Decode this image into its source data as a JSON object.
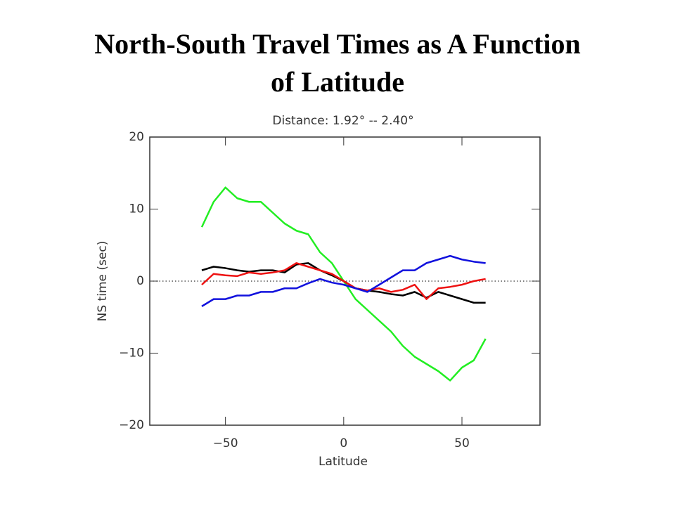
{
  "slide_title": "North-South Travel Times as A Function of Latitude",
  "chart_data": {
    "type": "line",
    "title": "Distance: 1.92° -- 2.40°",
    "xlabel": "Latitude",
    "ylabel": "NS time (sec)",
    "x": [
      -60,
      -55,
      -50,
      -45,
      -40,
      -35,
      -30,
      -25,
      -20,
      -15,
      -10,
      -5,
      0,
      5,
      10,
      15,
      20,
      25,
      30,
      35,
      40,
      45,
      50,
      55,
      60
    ],
    "series": [
      {
        "color": "#22ee22",
        "values": [
          7.5,
          11,
          13,
          11.5,
          11,
          11,
          9.5,
          8,
          7,
          6.5,
          4,
          2.5,
          0,
          -2.5,
          -4,
          -5.5,
          -7,
          -9,
          -10.5,
          -11.5,
          -12.5,
          -13.8,
          -12,
          -11,
          -8
        ]
      },
      {
        "color": "#000000",
        "values": [
          1.5,
          2,
          1.8,
          1.5,
          1.3,
          1.5,
          1.5,
          1.2,
          2.3,
          2.5,
          1.5,
          0.8,
          0,
          -1,
          -1.3,
          -1.5,
          -1.8,
          -2,
          -1.5,
          -2.3,
          -1.5,
          -2,
          -2.5,
          -3,
          -3
        ]
      },
      {
        "color": "#ee1111",
        "values": [
          -0.5,
          1,
          0.8,
          0.7,
          1.2,
          1,
          1.2,
          1.5,
          2.5,
          2,
          1.5,
          1,
          0,
          -1,
          -1.3,
          -1,
          -1.5,
          -1.2,
          -0.5,
          -2.5,
          -1,
          -0.8,
          -0.5,
          0,
          0.3
        ]
      },
      {
        "color": "#1111dd",
        "values": [
          -3.5,
          -2.5,
          -2.5,
          -2,
          -2,
          -1.5,
          -1.5,
          -1,
          -1,
          -0.3,
          0.3,
          -0.2,
          -0.5,
          -1,
          -1.5,
          -0.5,
          0.5,
          1.5,
          1.5,
          2.5,
          3,
          3.5,
          3,
          2.7,
          2.5
        ]
      }
    ],
    "reference_line": 0,
    "xlim": [
      -82,
      83
    ],
    "ylim": [
      -20,
      20
    ],
    "xticks": [
      {
        "value": -50,
        "label": "−50"
      },
      0,
      50
    ],
    "yticks": [
      {
        "value": -20,
        "label": "−20"
      },
      {
        "value": -10,
        "label": "−10"
      },
      0,
      10,
      20
    ]
  }
}
